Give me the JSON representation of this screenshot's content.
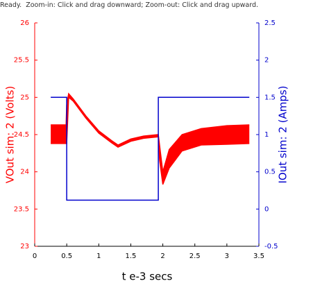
{
  "status": "Ready.  Zoom-in: Click and drag downward; Zoom-out: Click and drag upward.",
  "chart_data": {
    "type": "line",
    "x_label": "t e-3 secs",
    "y_label": "VOut sim: 2 (Volts)",
    "y2_label": "IOut sim: 2 (Amps)",
    "xlim": [
      0,
      3.5
    ],
    "xticks": [
      0,
      0.5,
      1,
      1.5,
      2,
      2.5,
      3,
      3.5
    ],
    "ylim": [
      23,
      26
    ],
    "yticks": [
      23,
      23.5,
      24,
      24.5,
      25,
      25.5,
      26
    ],
    "y2lim": [
      -0.5,
      2.5
    ],
    "y2ticks": [
      -0.5,
      0,
      0.5,
      1,
      1.5,
      2,
      2.5
    ],
    "grid": false,
    "series": [
      {
        "color": "#ff0000",
        "axis": "y",
        "x": [
          0.25,
          0.49,
          0.5,
          0.53,
          0.6,
          0.8,
          1.0,
          1.2,
          1.3,
          1.5,
          1.7,
          1.93,
          1.95,
          2.0,
          2.1,
          2.3,
          2.6,
          3.0,
          3.35
        ],
        "values": [
          24.63,
          24.63,
          24.9,
          25.05,
          24.98,
          24.75,
          24.55,
          24.42,
          24.36,
          24.44,
          24.48,
          24.5,
          24.35,
          24.0,
          24.3,
          24.5,
          24.58,
          24.62,
          24.63
        ],
        "lower": [
          24.38,
          24.38,
          24.38,
          25.0,
          24.95,
          24.72,
          24.52,
          24.39,
          24.33,
          24.41,
          24.45,
          24.47,
          24.15,
          23.83,
          24.05,
          24.28,
          24.36,
          24.37,
          24.38
        ]
      },
      {
        "color": "#0000cc",
        "axis": "y2",
        "x": [
          0.25,
          0.5,
          0.5,
          1.93,
          1.93,
          3.35
        ],
        "values": [
          1.5,
          1.5,
          0.12,
          0.12,
          1.5,
          1.5
        ]
      }
    ]
  }
}
